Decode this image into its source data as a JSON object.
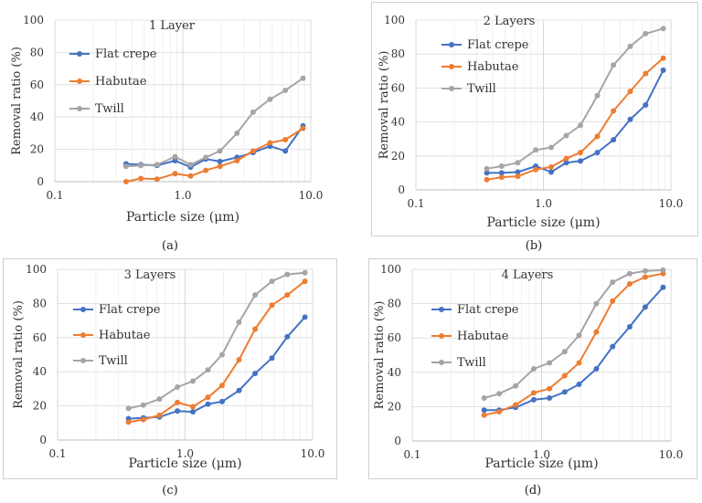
{
  "colors": {
    "flat_crepe": "#4472c4",
    "habutae": "#ed7d31",
    "twill": "#a5a5a5"
  },
  "chart_data": [
    {
      "type": "line",
      "title": "1 Layer",
      "caption": "(a)",
      "xlabel": "Particle size (μm)",
      "ylabel": "Removal ratio (%)",
      "xscale": "log",
      "xlim": [
        0.1,
        10.0
      ],
      "ylim": [
        0,
        100
      ],
      "xticks": [
        "0.1",
        "1.0",
        "10.0"
      ],
      "yticks": [
        "0",
        "20",
        "40",
        "60",
        "80",
        "100"
      ],
      "legend": "left",
      "x": [
        0.36,
        0.47,
        0.63,
        0.87,
        1.15,
        1.51,
        1.95,
        2.65,
        3.54,
        4.8,
        6.33,
        8.7
      ],
      "series": [
        {
          "name": "Flat crepe",
          "values": [
            11,
            10.5,
            10,
            13,
            9,
            14,
            12.5,
            15,
            18,
            22,
            19,
            34.5
          ]
        },
        {
          "name": "Habutae",
          "values": [
            0,
            2,
            1.5,
            5,
            3.5,
            7,
            9.5,
            13,
            19,
            24,
            26,
            33
          ]
        },
        {
          "name": "Twill",
          "values": [
            9.5,
            10,
            10.5,
            15.5,
            10.5,
            15,
            19,
            30,
            43,
            51,
            56.5,
            64
          ]
        }
      ]
    },
    {
      "type": "line",
      "title": "2 Layers",
      "caption": "(b)",
      "xlabel": "Particle size (μm)",
      "ylabel": "Removal ratio (%)",
      "xscale": "log",
      "xlim": [
        0.1,
        10.0
      ],
      "ylim": [
        0,
        100
      ],
      "xticks": [
        "0.1",
        "1.0",
        "10.0"
      ],
      "yticks": [
        "0",
        "20",
        "40",
        "60",
        "80",
        "100"
      ],
      "legend": "left",
      "x": [
        0.36,
        0.47,
        0.63,
        0.87,
        1.15,
        1.51,
        1.95,
        2.65,
        3.54,
        4.8,
        6.33,
        8.7
      ],
      "series": [
        {
          "name": "Flat crepe",
          "values": [
            10,
            10,
            10.5,
            14,
            10.5,
            16,
            17,
            22,
            29.5,
            41.5,
            50,
            70.5
          ]
        },
        {
          "name": "Habutae",
          "values": [
            6,
            7.5,
            8,
            12,
            13.5,
            18.5,
            22,
            31.5,
            46.5,
            58,
            68.5,
            77.5
          ]
        },
        {
          "name": "Twill",
          "values": [
            12.5,
            14,
            16,
            23.5,
            25,
            32,
            38,
            55.5,
            73.5,
            84.5,
            92,
            95
          ]
        }
      ]
    },
    {
      "type": "line",
      "title": "3 Layers",
      "caption": "(c)",
      "xlabel": "Particle size (μm)",
      "ylabel": "Removal ratio (%)",
      "xscale": "log",
      "xlim": [
        0.1,
        10.0
      ],
      "ylim": [
        0,
        100
      ],
      "xticks": [
        "0.1",
        "1.0",
        "10.0"
      ],
      "yticks": [
        "0",
        "20",
        "40",
        "60",
        "80",
        "100"
      ],
      "legend": "left",
      "x": [
        0.36,
        0.47,
        0.63,
        0.87,
        1.15,
        1.51,
        1.95,
        2.65,
        3.54,
        4.8,
        6.33,
        8.7
      ],
      "series": [
        {
          "name": "Flat crepe",
          "values": [
            12.5,
            13,
            13.5,
            17,
            16.5,
            21,
            22.5,
            29,
            39,
            48,
            60.5,
            72
          ]
        },
        {
          "name": "Habutae",
          "values": [
            10.5,
            12,
            14.5,
            22,
            19.5,
            25,
            32,
            47,
            65,
            79,
            85,
            93
          ]
        },
        {
          "name": "Twill",
          "values": [
            18.5,
            20.5,
            24,
            31,
            34.5,
            41,
            50,
            69,
            85,
            93,
            97,
            98
          ]
        }
      ]
    },
    {
      "type": "line",
      "title": "4 Layers",
      "caption": "(d)",
      "xlabel": "Particle size (μm)",
      "ylabel": "Removal ratio (%)",
      "xscale": "log",
      "xlim": [
        0.1,
        10.0
      ],
      "ylim": [
        0,
        100
      ],
      "xticks": [
        "0.1",
        "1.0",
        "10.0"
      ],
      "yticks": [
        "0",
        "20",
        "40",
        "60",
        "80",
        "100"
      ],
      "legend": "left",
      "x": [
        0.36,
        0.47,
        0.63,
        0.87,
        1.15,
        1.51,
        1.95,
        2.65,
        3.54,
        4.8,
        6.33,
        8.7
      ],
      "series": [
        {
          "name": "Flat crepe",
          "values": [
            18,
            18,
            19.5,
            24,
            25,
            28.5,
            33,
            42,
            55,
            66.5,
            78,
            89.5
          ]
        },
        {
          "name": "Habutae",
          "values": [
            15,
            17,
            21,
            28,
            30.5,
            38,
            45.5,
            63.5,
            81.5,
            91.5,
            95.5,
            97.5
          ]
        },
        {
          "name": "Twill",
          "values": [
            25,
            27.5,
            32,
            42,
            45.5,
            52,
            61.5,
            80,
            92.5,
            97.5,
            99,
            99.5
          ]
        }
      ]
    }
  ]
}
